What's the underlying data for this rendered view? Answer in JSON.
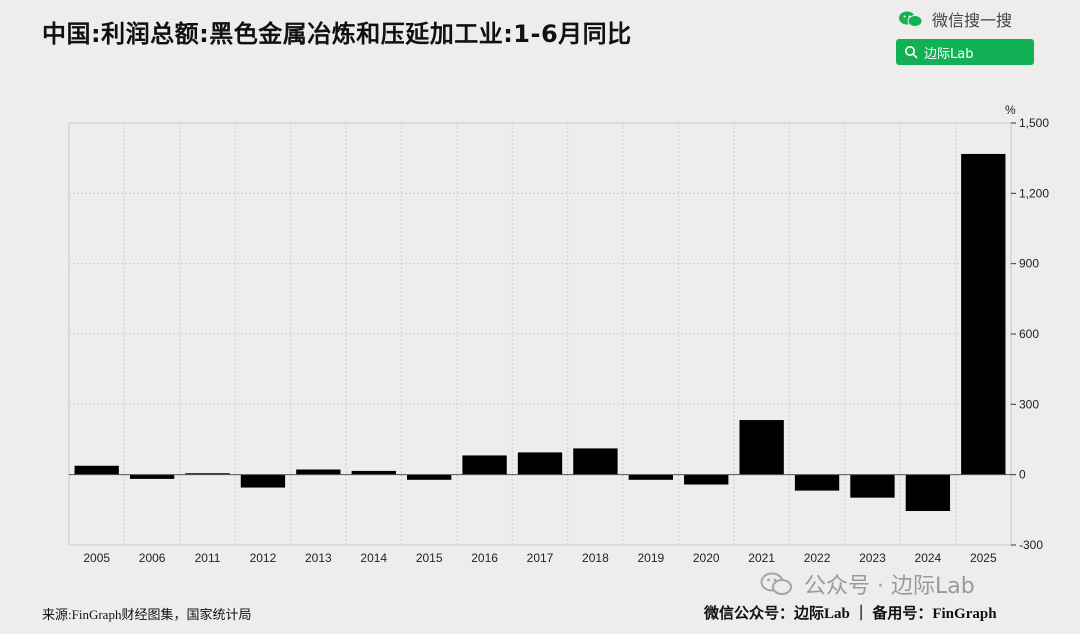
{
  "header": {
    "title": "中国:利润总额:黑色金属冶炼和压延加工业:1-6月同比",
    "brand_text": "微信搜一搜",
    "search_label": "边际Lab",
    "brand_color": "#12b156"
  },
  "footer": {
    "source": "来源:FinGraph财经图集，国家统计局",
    "credit": "微信公众号：边际Lab ｜ 备用号：FinGraph",
    "watermark": "公众号 · 边际Lab"
  },
  "chart_data": {
    "type": "bar",
    "title": "中国:利润总额:黑色金属冶炼和压延加工业:1-6月同比",
    "unit": "%",
    "categories": [
      "2005",
      "2006",
      "2011",
      "2012",
      "2013",
      "2014",
      "2015",
      "2016",
      "2017",
      "2018",
      "2019",
      "2020",
      "2021",
      "2022",
      "2023",
      "2024",
      "2025"
    ],
    "values": [
      38,
      -18,
      6,
      -55,
      22,
      16,
      -22,
      82,
      95,
      112,
      -22,
      -42,
      233,
      -68,
      -98,
      -155,
      1368
    ],
    "ylim": [
      -300,
      1500
    ],
    "yticks": [
      -300,
      0,
      300,
      600,
      900,
      1200,
      1500
    ],
    "ytick_labels": [
      "-300",
      "0",
      "300",
      "600",
      "900",
      "1,200",
      "1,500"
    ],
    "bar_color": "#000000",
    "grid": true,
    "y_axis_position": "right"
  }
}
